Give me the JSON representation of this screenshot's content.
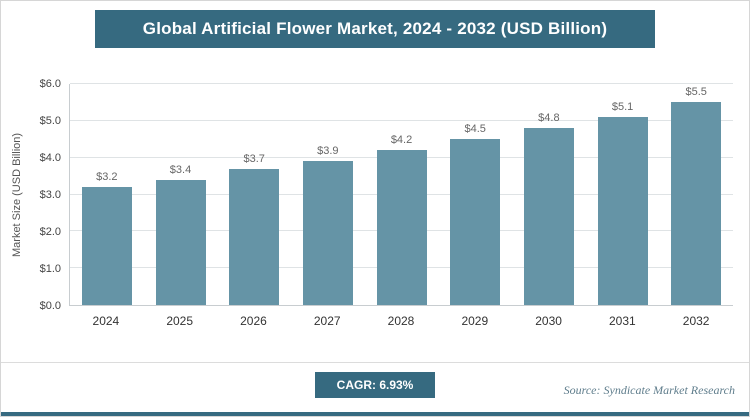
{
  "title": "Global Artificial Flower Market, 2024 - 2032 (USD Billion)",
  "colors": {
    "accent": "#366a80",
    "bar": "#6594a6",
    "gridline": "#dfe3e5"
  },
  "footer": {
    "cagr_label": "CAGR: 6.93%",
    "source": "Source: Syndicate Market Research"
  },
  "chart_data": {
    "type": "bar",
    "title": "Global Artificial Flower Market, 2024 - 2032 (USD Billion)",
    "categories": [
      "2024",
      "2025",
      "2026",
      "2027",
      "2028",
      "2029",
      "2030",
      "2031",
      "2032"
    ],
    "values": [
      3.2,
      3.4,
      3.7,
      3.9,
      4.2,
      4.5,
      4.8,
      5.1,
      5.5
    ],
    "data_labels": [
      "$3.2",
      "$3.4",
      "$3.7",
      "$3.9",
      "$4.2",
      "$4.5",
      "$4.8",
      "$5.1",
      "$5.5"
    ],
    "xlabel": "",
    "ylabel": "Market Size (USD Billion)",
    "ylim": [
      0,
      6
    ],
    "ytick_labels": [
      "$0.0",
      "$1.0",
      "$2.0",
      "$3.0",
      "$4.0",
      "$5.0",
      "$6.0"
    ],
    "grid": true,
    "legend_position": "none"
  }
}
